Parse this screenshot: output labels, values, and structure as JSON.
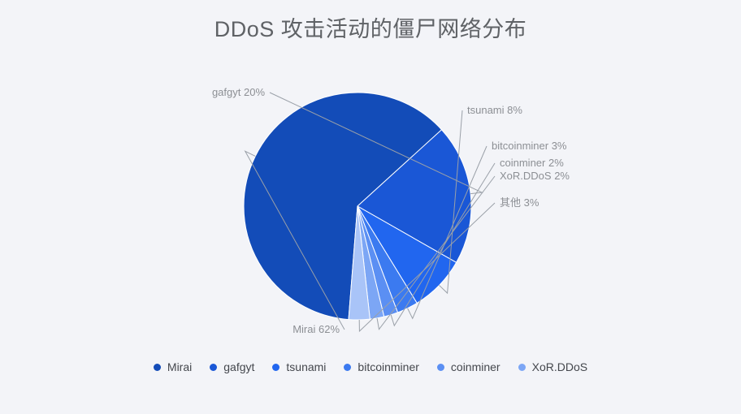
{
  "chart_data": {
    "type": "pie",
    "title": "DDoS 攻击活动的僵尸网络分布",
    "slices": [
      {
        "name": "Mirai",
        "value": 62,
        "label": "Mirai 62%",
        "color": "#134cb8"
      },
      {
        "name": "gafgyt",
        "value": 20,
        "label": "gafgyt 20%",
        "color": "#1a57d6"
      },
      {
        "name": "tsunami",
        "value": 8,
        "label": "tsunami 8%",
        "color": "#2166ef"
      },
      {
        "name": "bitcoinminer",
        "value": 3,
        "label": "bitcoinminer 3%",
        "color": "#3b7af0"
      },
      {
        "name": "coinminer",
        "value": 2,
        "label": "coinminer 2%",
        "color": "#5b8ff3"
      },
      {
        "name": "XoR.DDoS",
        "value": 2,
        "label": "XoR.DDoS 2%",
        "color": "#7ca6f5"
      },
      {
        "name": "其他",
        "value": 3,
        "label": "其他 3%",
        "color": "#a9c4f8"
      }
    ],
    "legend": [
      "Mirai",
      "gafgyt",
      "tsunami",
      "bitcoinminer",
      "coinminer",
      "XoR.DDoS"
    ],
    "legend_placement": "bottom"
  }
}
